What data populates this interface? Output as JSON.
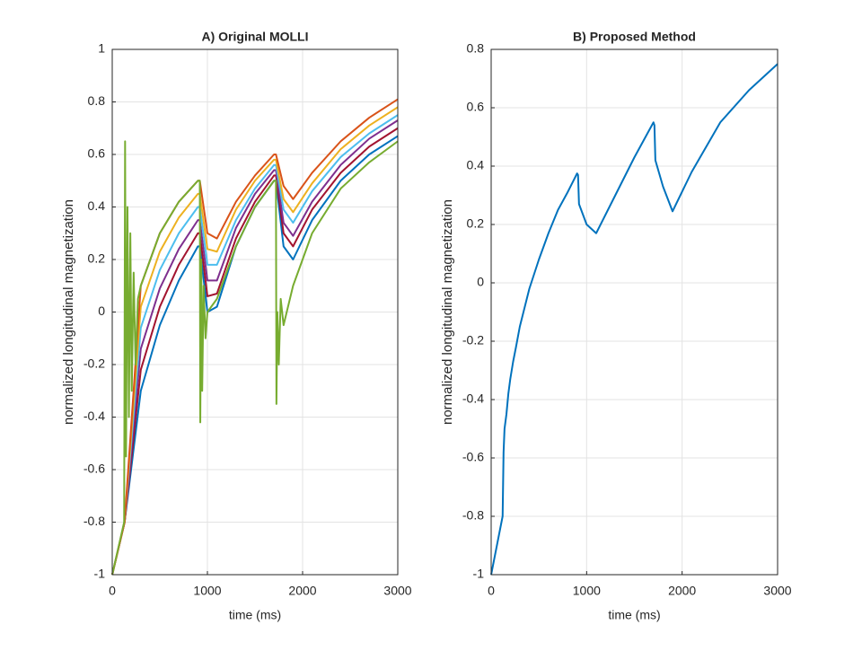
{
  "chart_data": [
    {
      "type": "line",
      "title": "A) Original MOLLI",
      "xlabel": "time (ms)",
      "ylabel": "normalized longitudinal magnetization",
      "xlim": [
        0,
        3000
      ],
      "xticks": [
        0,
        1000,
        2000,
        3000
      ],
      "ylim": [
        -1,
        1
      ],
      "yticks": [
        -1,
        -0.8,
        -0.6,
        -0.4,
        -0.2,
        0,
        0.2,
        0.4,
        0.6,
        0.8,
        1
      ],
      "grid": true,
      "series": [
        {
          "color": "#0072BD",
          "x": [
            0,
            130,
            300,
            500,
            700,
            900,
            920,
            1000,
            1100,
            1300,
            1500,
            1700,
            1720,
            1800,
            1900,
            2100,
            2400,
            2700,
            3000
          ],
          "values": [
            -1,
            -0.8,
            -0.3,
            -0.05,
            0.12,
            0.25,
            0.25,
            0,
            0.02,
            0.25,
            0.4,
            0.5,
            0.5,
            0.25,
            0.2,
            0.35,
            0.5,
            0.6,
            0.67
          ]
        },
        {
          "color": "#A2142F",
          "x": [
            0,
            130,
            300,
            500,
            700,
            900,
            920,
            1000,
            1100,
            1300,
            1500,
            1700,
            1720,
            1800,
            1900,
            2100,
            2400,
            2700,
            3000
          ],
          "values": [
            -1,
            -0.8,
            -0.22,
            0.02,
            0.18,
            0.3,
            0.3,
            0.06,
            0.07,
            0.28,
            0.42,
            0.52,
            0.52,
            0.3,
            0.25,
            0.39,
            0.53,
            0.63,
            0.7
          ]
        },
        {
          "color": "#7E2F8E",
          "x": [
            0,
            130,
            300,
            500,
            700,
            900,
            920,
            1000,
            1100,
            1300,
            1500,
            1700,
            1720,
            1800,
            1900,
            2100,
            2400,
            2700,
            3000
          ],
          "values": [
            -1,
            -0.8,
            -0.14,
            0.09,
            0.24,
            0.35,
            0.35,
            0.12,
            0.12,
            0.32,
            0.45,
            0.54,
            0.54,
            0.34,
            0.29,
            0.42,
            0.56,
            0.66,
            0.73
          ]
        },
        {
          "color": "#4DBEEE",
          "x": [
            0,
            130,
            300,
            500,
            700,
            900,
            920,
            1000,
            1100,
            1300,
            1500,
            1700,
            1720,
            1800,
            1900,
            2100,
            2400,
            2700,
            3000
          ],
          "values": [
            -1,
            -0.8,
            -0.06,
            0.16,
            0.3,
            0.4,
            0.4,
            0.18,
            0.18,
            0.35,
            0.47,
            0.56,
            0.56,
            0.39,
            0.34,
            0.46,
            0.59,
            0.68,
            0.75
          ]
        },
        {
          "color": "#EDB120",
          "x": [
            0,
            130,
            300,
            500,
            700,
            900,
            920,
            1000,
            1100,
            1300,
            1500,
            1700,
            1720,
            1800,
            1900,
            2100,
            2400,
            2700,
            3000
          ],
          "values": [
            -1,
            -0.8,
            0.02,
            0.23,
            0.36,
            0.45,
            0.45,
            0.24,
            0.23,
            0.39,
            0.5,
            0.58,
            0.58,
            0.43,
            0.38,
            0.49,
            0.62,
            0.71,
            0.78
          ]
        },
        {
          "color": "#D95319",
          "x": [
            0,
            130,
            300,
            500,
            700,
            900,
            920,
            1000,
            1100,
            1300,
            1500,
            1700,
            1720,
            1800,
            1900,
            2100,
            2400,
            2700,
            3000
          ],
          "values": [
            -1,
            -0.8,
            0.1,
            0.3,
            0.42,
            0.5,
            0.5,
            0.3,
            0.28,
            0.42,
            0.52,
            0.6,
            0.6,
            0.48,
            0.43,
            0.53,
            0.65,
            0.74,
            0.81
          ]
        },
        {
          "color": "#77AC30",
          "x": [
            0,
            125,
            135,
            145,
            160,
            175,
            190,
            205,
            225,
            245,
            270,
            300,
            500,
            700,
            900,
            920,
            925,
            935,
            945,
            960,
            980,
            1000,
            1100,
            1300,
            1500,
            1700,
            1720,
            1725,
            1735,
            1750,
            1770,
            1800,
            1900,
            2100,
            2400,
            2700,
            3000
          ],
          "values": [
            -1,
            -0.8,
            0.65,
            -0.55,
            0.4,
            -0.4,
            0.3,
            -0.3,
            0.15,
            -0.2,
            0.05,
            0.1,
            0.3,
            0.42,
            0.5,
            0.5,
            -0.42,
            0.2,
            -0.3,
            0.1,
            -0.1,
            0,
            0.05,
            0.25,
            0.4,
            0.5,
            0.5,
            -0.35,
            0,
            -0.2,
            0.05,
            -0.05,
            0.1,
            0.3,
            0.47,
            0.57,
            0.65
          ]
        }
      ]
    },
    {
      "type": "line",
      "title": "B) Proposed Method",
      "xlabel": "time (ms)",
      "ylabel": "normalized longitudinal magnetization",
      "xlim": [
        0,
        3000
      ],
      "xticks": [
        0,
        1000,
        2000,
        3000
      ],
      "ylim": [
        -1,
        0.8
      ],
      "yticks": [
        -1,
        -0.8,
        -0.6,
        -0.4,
        -0.2,
        0,
        0.2,
        0.4,
        0.6,
        0.8
      ],
      "grid": true,
      "series": [
        {
          "color": "#0072BD",
          "x": [
            0,
            120,
            130,
            140,
            160,
            180,
            200,
            230,
            260,
            300,
            400,
            500,
            600,
            700,
            800,
            900,
            910,
            920,
            1000,
            1100,
            1300,
            1500,
            1700,
            1710,
            1720,
            1800,
            1900,
            2100,
            2400,
            2700,
            3000
          ],
          "values": [
            -1,
            -0.8,
            -0.58,
            -0.5,
            -0.45,
            -0.38,
            -0.33,
            -0.27,
            -0.22,
            -0.15,
            -0.02,
            0.08,
            0.17,
            0.25,
            0.31,
            0.375,
            0.37,
            0.27,
            0.2,
            0.17,
            0.3,
            0.43,
            0.55,
            0.54,
            0.42,
            0.33,
            0.245,
            0.38,
            0.55,
            0.66,
            0.75
          ]
        }
      ]
    }
  ]
}
